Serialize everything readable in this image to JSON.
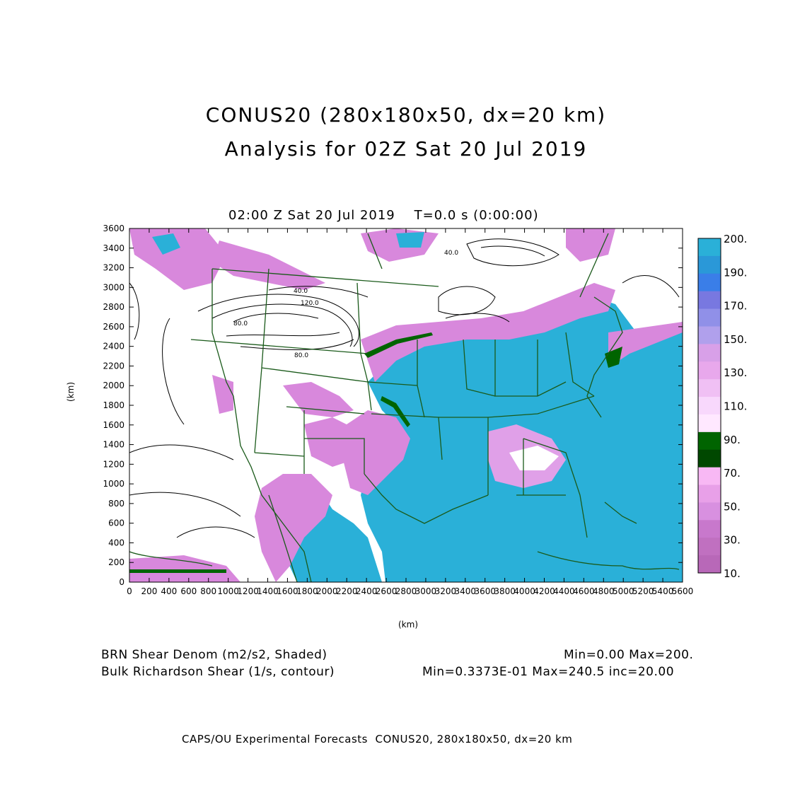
{
  "title_line1": "CONUS20 (280x180x50, dx=20 km)",
  "title_line2": "Analysis for 02Z Sat 20 Jul 2019",
  "time_label": "02:00 Z Sat 20 Jul 2019    T=0.0 s (0:00:00)",
  "axes": {
    "xlabel": "(km)",
    "ylabel": "(km)",
    "x_ticks": [
      "0",
      "200",
      "400",
      "600",
      "800",
      "1000",
      "1200",
      "1400",
      "1600",
      "1800",
      "2000",
      "2200",
      "2400",
      "2600",
      "2800",
      "3000",
      "3200",
      "3400",
      "3600",
      "3800",
      "4000",
      "4200",
      "4400",
      "4600",
      "4800",
      "5000",
      "5200",
      "5400",
      "5600"
    ],
    "y_ticks": [
      "0",
      "200",
      "400",
      "600",
      "800",
      "1000",
      "1200",
      "1400",
      "1600",
      "1800",
      "2000",
      "2200",
      "2400",
      "2600",
      "2800",
      "3000",
      "3200",
      "3400",
      "3600"
    ],
    "xlim": [
      0,
      5600
    ],
    "ylim": [
      0,
      3600
    ]
  },
  "colorbar": {
    "labels": [
      "200.",
      "190.",
      "170.",
      "150.",
      "130.",
      "110.",
      "90.",
      "70.",
      "50.",
      "30.",
      "10."
    ],
    "colors": [
      "#2ab0d8",
      "#2a98d8",
      "#3a7ee8",
      "#7878e0",
      "#9090e8",
      "#b0a0ec",
      "#d8a0e8",
      "#e8a8ec",
      "#f0c0f4",
      "#f8d8fc",
      "#ffe8ff",
      "#006400",
      "#004800",
      "#f8b8f4",
      "#e8a0e8",
      "#d890e0",
      "#c878cc",
      "#c070c0",
      "#b868b8"
    ]
  },
  "footer": {
    "shaded_label": "BRN Shear Denom (m2/s2, Shaded)",
    "shaded_stats": "Min=0.00 Max=200.",
    "contour_label": "Bulk Richardson Shear (1/s, contour)",
    "contour_stats": "Min=0.3373E-01 Max=240.5 inc=20.00"
  },
  "credit": "CAPS/OU Experimental Forecasts  CONUS20, 280x180x50, dx=20 km",
  "contour_labels": [
    "40.0",
    "120.0",
    "80.0",
    "80.0",
    "40.0"
  ]
}
